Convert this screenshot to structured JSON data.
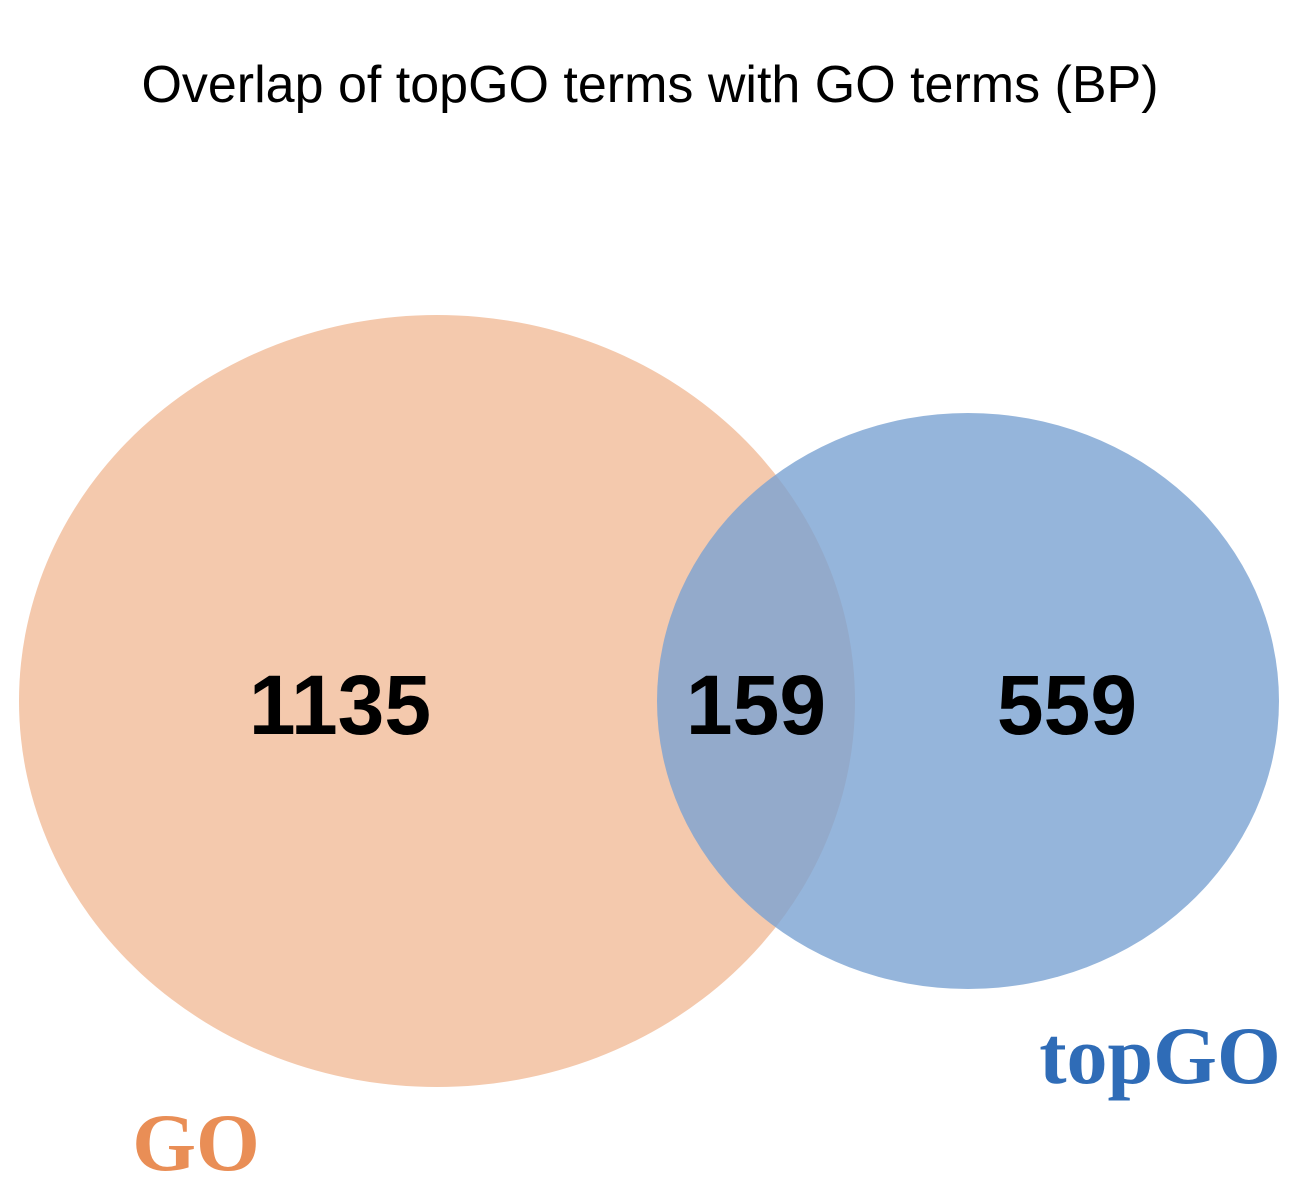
{
  "title": "Overlap of topGO terms with GO terms (BP)",
  "sets": {
    "go": {
      "label": "GO",
      "fill_color": "#f4c9ad",
      "label_color": "#e98e56"
    },
    "topgo": {
      "label": "topGO",
      "fill_color": "#7ba2d2",
      "label_color": "#2f6cb7"
    }
  },
  "counts": {
    "go_only": "1135",
    "overlap": "159",
    "topgo_only": "559"
  },
  "chart_data": {
    "type": "venn",
    "title": "Overlap of topGO terms with GO terms (BP)",
    "sets": [
      "GO",
      "topGO"
    ],
    "regions": [
      {
        "sets": [
          "GO"
        ],
        "only": true,
        "value": 1135
      },
      {
        "sets": [
          "GO",
          "topGO"
        ],
        "value": 159
      },
      {
        "sets": [
          "topGO"
        ],
        "only": true,
        "value": 559
      }
    ]
  }
}
